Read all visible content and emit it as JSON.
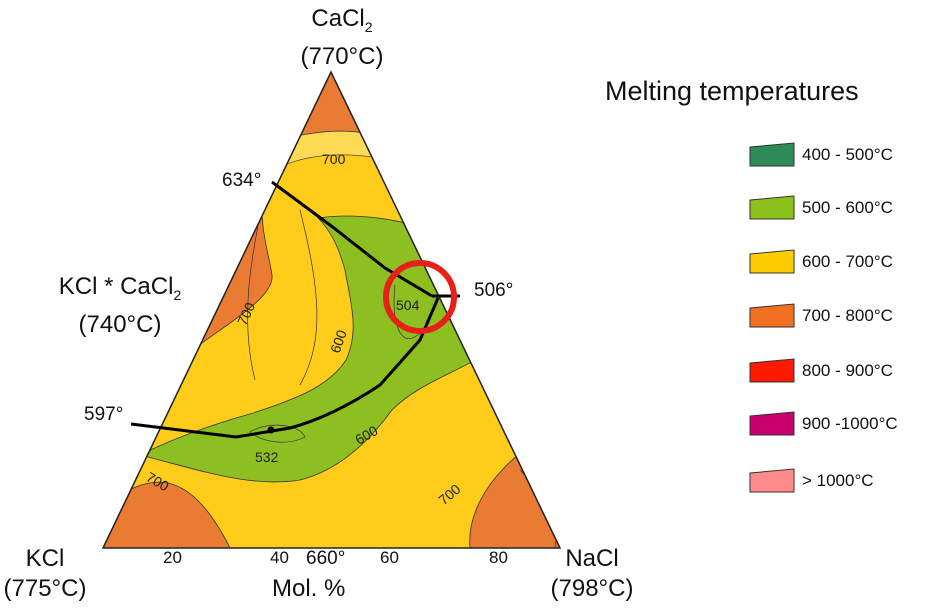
{
  "vertices": {
    "top": {
      "name": "CaCl",
      "sub": "2",
      "temp": "(770°C)"
    },
    "left": {
      "name": "KCl",
      "temp": "(775°C)"
    },
    "right": {
      "name": "NaCl",
      "temp": "(798°C)"
    }
  },
  "compound": {
    "name": "KCl * CaCl",
    "sub": "2",
    "temp": "(740°C)"
  },
  "points": {
    "p634": "634°",
    "p597": "597°",
    "p506": "506°",
    "p660": "660°"
  },
  "axis": {
    "ticks": [
      "20",
      "40",
      "60",
      "80"
    ],
    "label": "Mol. %"
  },
  "contour_labels": {
    "top700": "700",
    "left700": "700",
    "mid600": "600",
    "low600": "600",
    "bl700": "700",
    "br700": "700",
    "eutectic504": "504",
    "point532": "532"
  },
  "legend": {
    "title": "Melting temperatures",
    "items": [
      {
        "label": "400 - 500°C",
        "color": "#2e8b57"
      },
      {
        "label": "500 - 600°C",
        "color": "#8ac11a"
      },
      {
        "label": "600 - 700°C",
        "color": "#ffcc00"
      },
      {
        "label": "700 - 800°C",
        "color": "#f37021"
      },
      {
        "label": "800 - 900°C",
        "color": "#ff1a00"
      },
      {
        "label": "900 -1000°C",
        "color": "#c8006e"
      },
      {
        "label": "> 1000°C",
        "color": "#ff8a8a"
      }
    ]
  },
  "colors": {
    "orange": "#ea7b33",
    "yellow": "#ffcc1a",
    "green": "#8cbf1f",
    "highlight": "#e8201a"
  }
}
